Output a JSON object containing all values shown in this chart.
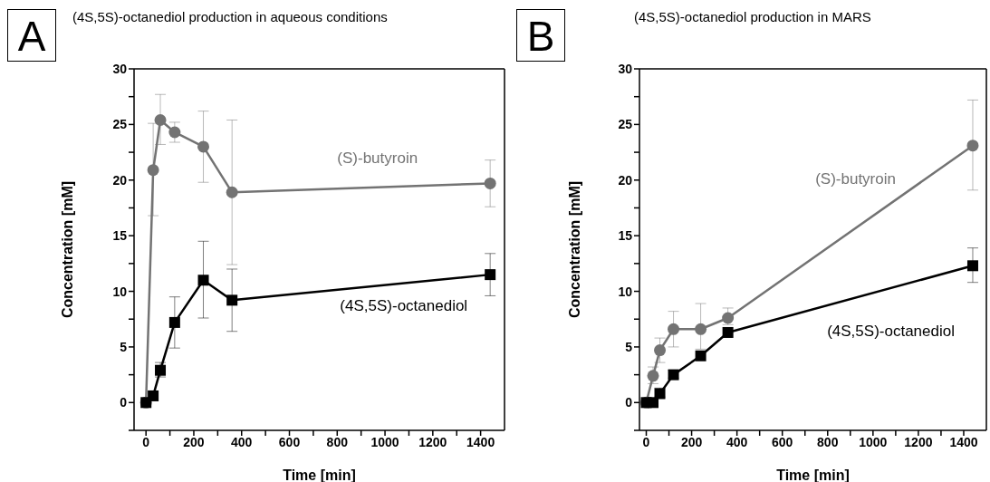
{
  "chart_data": [
    {
      "type": "line",
      "title": "(4S,5S)-octanediol production in aqueous conditions",
      "xlabel": "Time [min]",
      "ylabel": "Concentration [mM]",
      "annotations": [
        "A"
      ],
      "xlim": [
        -50,
        1500
      ],
      "xticks": [
        0,
        {
          "value": 100,
          "label": null
        },
        200,
        {
          "value": 300,
          "label": null
        },
        400,
        {
          "value": 500,
          "label": null
        },
        600,
        {
          "value": 700,
          "label": null
        },
        800,
        {
          "value": 900,
          "label": null
        },
        1000,
        {
          "value": 1100,
          "label": null
        },
        1200,
        {
          "value": 1300,
          "label": null
        },
        1400
      ],
      "ylim": [
        -2.5,
        30
      ],
      "yticks": [
        {
          "value": -2.5,
          "label": null
        },
        0,
        {
          "value": 2.5,
          "label": null
        },
        5,
        {
          "value": 7.5,
          "label": null
        },
        10,
        {
          "value": 12.5,
          "label": null
        },
        15,
        {
          "value": 17.5,
          "label": null
        },
        20,
        {
          "value": 22.5,
          "label": null
        },
        25,
        {
          "value": 27.5,
          "label": null
        },
        30
      ],
      "line_style": "solid",
      "series": [
        {
          "name": "(S)-butyroin",
          "color": "#737373",
          "marker": "circle",
          "x": [
            0,
            30,
            60,
            120,
            240,
            360,
            1440
          ],
          "values": [
            0,
            20.9,
            25.4,
            24.3,
            23.0,
            18.9,
            19.7
          ],
          "errors": [
            null,
            [
              16.8,
              25.1
            ],
            [
              23.2,
              27.7
            ],
            [
              23.4,
              25.2
            ],
            [
              19.8,
              26.2
            ],
            [
              12.4,
              25.4
            ],
            [
              17.6,
              21.8
            ]
          ]
        },
        {
          "name": "(4S,5S)-octanediol",
          "color": "#000000",
          "marker": "square",
          "x": [
            0,
            30,
            60,
            120,
            240,
            360,
            1440
          ],
          "values": [
            0,
            0.6,
            2.9,
            7.2,
            11.0,
            9.2,
            11.5
          ],
          "errors": [
            null,
            null,
            [
              2.3,
              3.6
            ],
            [
              4.9,
              9.5
            ],
            [
              7.6,
              14.5
            ],
            [
              6.4,
              12.0
            ],
            [
              9.6,
              13.4
            ]
          ]
        }
      ]
    },
    {
      "type": "line",
      "title": "(4S,5S)-octanediol production in MARS",
      "xlabel": "Time [min]",
      "ylabel": "Concentration [mM]",
      "annotations": [
        "B"
      ],
      "xlim": [
        -30,
        1500
      ],
      "xticks": [
        0,
        {
          "value": 100,
          "label": null
        },
        200,
        {
          "value": 300,
          "label": null
        },
        400,
        {
          "value": 500,
          "label": null
        },
        600,
        {
          "value": 700,
          "label": null
        },
        800,
        {
          "value": 900,
          "label": null
        },
        1000,
        {
          "value": 1100,
          "label": null
        },
        1200,
        {
          "value": 1300,
          "label": null
        },
        1400
      ],
      "ylim": [
        -2.5,
        30
      ],
      "yticks": [
        {
          "value": -2.5,
          "label": null
        },
        0,
        {
          "value": 2.5,
          "label": null
        },
        5,
        {
          "value": 7.5,
          "label": null
        },
        10,
        {
          "value": 12.5,
          "label": null
        },
        15,
        {
          "value": 17.5,
          "label": null
        },
        20,
        {
          "value": 22.5,
          "label": null
        },
        25,
        {
          "value": 27.5,
          "label": null
        },
        30
      ],
      "line_style": "solid",
      "series": [
        {
          "name": "(S)-butyroin",
          "color": "#737373",
          "marker": "circle",
          "x": [
            0,
            30,
            60,
            120,
            240,
            360,
            1440
          ],
          "values": [
            0,
            2.4,
            4.7,
            6.6,
            6.6,
            7.6,
            23.1
          ],
          "errors": [
            null,
            [
              1.7,
              3.2
            ],
            [
              3.6,
              5.8
            ],
            [
              5.0,
              8.2
            ],
            [
              4.8,
              8.9
            ],
            [
              7.0,
              8.5
            ],
            [
              19.1,
              27.2
            ]
          ]
        },
        {
          "name": "(4S,5S)-octanediol",
          "color": "#000000",
          "marker": "square",
          "x": [
            0,
            30,
            60,
            120,
            240,
            360,
            1440
          ],
          "values": [
            0,
            0,
            0.8,
            2.5,
            4.2,
            6.3,
            12.3
          ],
          "errors": [
            null,
            null,
            [
              0.5,
              1.3
            ],
            [
              2.2,
              2.9
            ],
            null,
            null,
            [
              10.8,
              13.9
            ]
          ]
        }
      ]
    }
  ]
}
